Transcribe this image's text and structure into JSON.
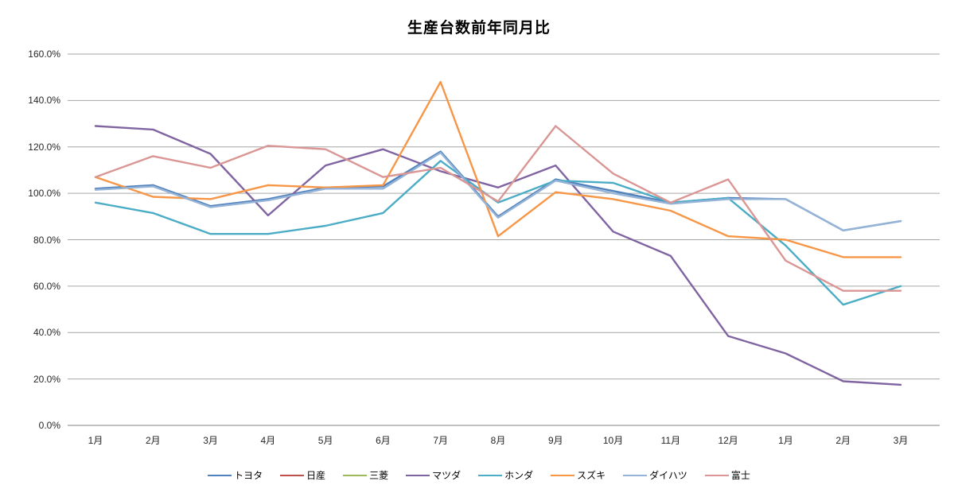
{
  "chart_data": {
    "type": "line",
    "title": "生産台数前年同月比",
    "legend_position": "bottom",
    "grid": true,
    "gridline_color": "#A6A6A6",
    "axis_line_color": "#808080",
    "background": "#FFFFFF",
    "y_axis": {
      "min": 0,
      "max": 160,
      "step": 20,
      "format": "percent",
      "tick_labels": [
        "160.0%",
        "140.0%",
        "120.0%",
        "100.0%",
        "80.0%",
        "60.0%",
        "40.0%",
        "20.0%",
        "0.0%"
      ]
    },
    "categories": [
      "1月",
      "2月",
      "3月",
      "4月",
      "5月",
      "6月",
      "7月",
      "8月",
      "9月",
      "10月",
      "11月",
      "12月",
      "1月",
      "2月",
      "3月"
    ],
    "series": [
      {
        "name": "トヨタ",
        "color": "#4F81BD",
        "values": [
          102,
          103.5,
          94.5,
          97.5,
          102.5,
          103,
          118,
          90,
          106,
          101,
          96,
          98,
          97.5,
          84,
          88
        ]
      },
      {
        "name": "日産",
        "color": "#C0504D",
        "values": []
      },
      {
        "name": "三菱",
        "color": "#9BBB59",
        "values": []
      },
      {
        "name": "マツダ",
        "color": "#8064A2",
        "values": [
          129,
          127.5,
          117,
          90.5,
          112,
          119,
          109.5,
          102.5,
          112,
          83.5,
          73,
          38.5,
          31,
          19,
          17.5
        ]
      },
      {
        "name": "ホンダ",
        "color": "#4BACC6",
        "values": [
          96,
          91.5,
          82.5,
          82.5,
          86,
          91.5,
          114,
          96,
          105.5,
          104.5,
          96,
          98,
          77.5,
          52,
          60
        ]
      },
      {
        "name": "スズキ",
        "color": "#F79646",
        "values": [
          107,
          98.5,
          97.5,
          103.5,
          102.5,
          103.5,
          148,
          81.5,
          100.5,
          97.5,
          92.5,
          81.5,
          80,
          72.5,
          72.5
        ]
      },
      {
        "name": "ダイハツ",
        "color": "#95B3D7",
        "values": [
          101.5,
          103,
          94,
          97,
          102,
          102,
          117.5,
          89.5,
          105.5,
          100,
          95.5,
          97.5,
          97.5,
          84,
          88
        ]
      },
      {
        "name": "富士",
        "color": "#D99694",
        "values": [
          107,
          116,
          111,
          120.5,
          119,
          107,
          111,
          96.5,
          129,
          108.5,
          96,
          106,
          71,
          58,
          58
        ]
      }
    ]
  }
}
